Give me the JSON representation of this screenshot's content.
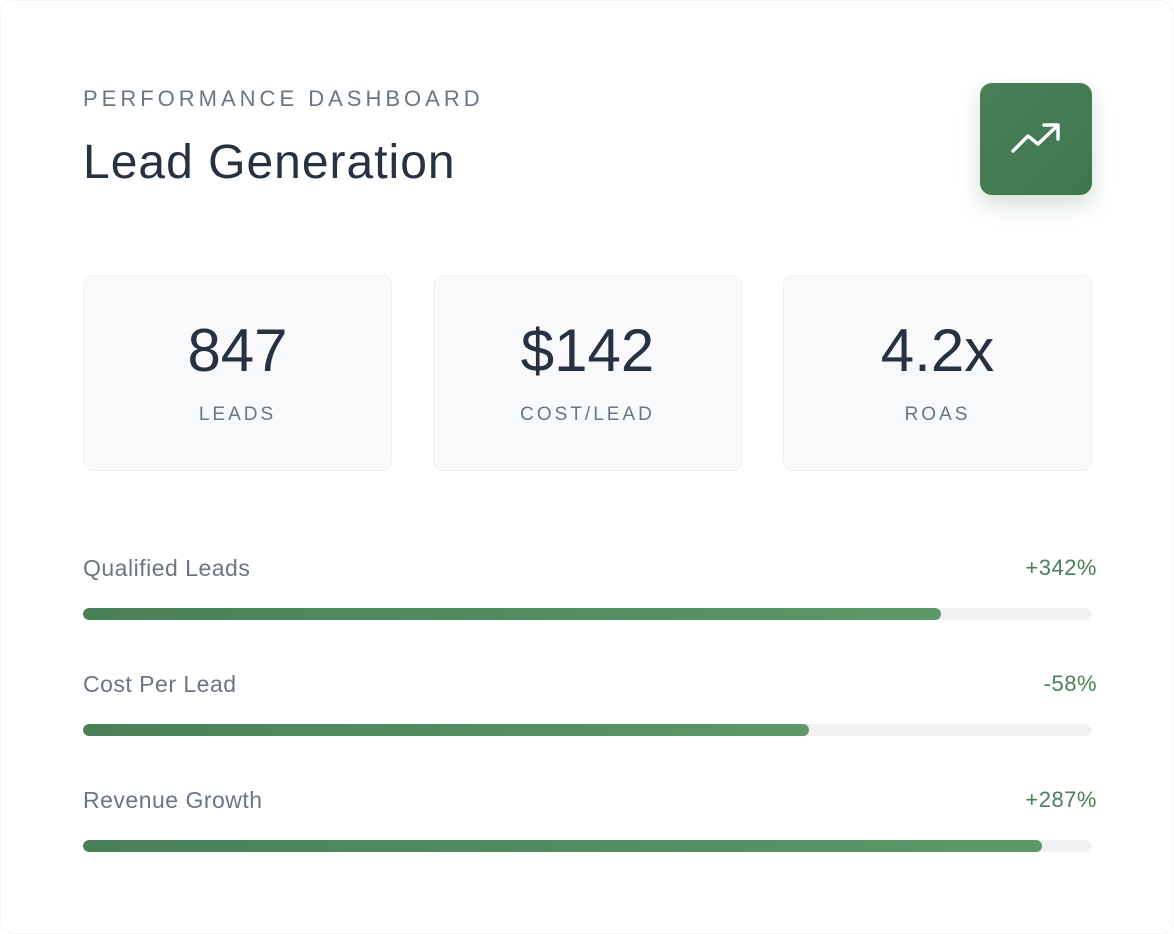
{
  "header": {
    "eyebrow": "PERFORMANCE DASHBOARD",
    "title": "Lead Generation",
    "badge_icon": "trending-up-icon"
  },
  "stats": [
    {
      "value": "847",
      "label": "LEADS"
    },
    {
      "value": "$142",
      "label": "COST/LEAD"
    },
    {
      "value": "4.2x",
      "label": "ROAS"
    }
  ],
  "metrics": [
    {
      "label": "Qualified Leads",
      "change": "+342%",
      "progress_fraction": 0.85
    },
    {
      "label": "Cost Per Lead",
      "change": "-58%",
      "progress_fraction": 0.72
    },
    {
      "label": "Revenue Growth",
      "change": "+287%",
      "progress_fraction": 0.95
    }
  ],
  "colors": {
    "accent": "#4a8058",
    "text_primary": "#263142",
    "text_secondary": "#6b7584",
    "track": "#f0f1f2"
  }
}
